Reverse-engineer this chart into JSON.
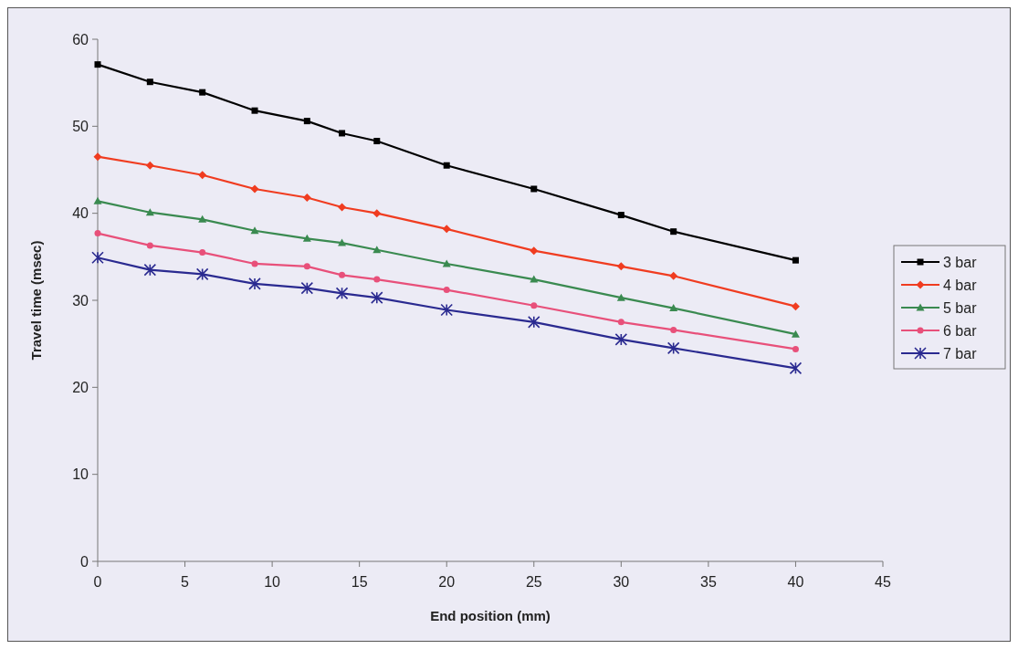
{
  "chart_data": {
    "type": "line",
    "xlabel": "End position (mm)",
    "ylabel": "Travel time (msec)",
    "x": [
      0,
      3,
      6,
      9,
      12,
      14,
      16,
      20,
      25,
      30,
      33,
      40
    ],
    "xlim": [
      0,
      45
    ],
    "xticks": [
      0,
      5,
      10,
      15,
      20,
      25,
      30,
      35,
      40,
      45
    ],
    "ylim": [
      0,
      60
    ],
    "yticks": [
      0,
      10,
      20,
      30,
      40,
      50,
      60
    ],
    "grid": false,
    "legend": "right",
    "line_style": "solid",
    "series": [
      {
        "name": "3 bar",
        "color": "#000000",
        "marker": "square",
        "values": [
          57.1,
          55.1,
          53.9,
          51.8,
          50.6,
          49.2,
          48.3,
          45.5,
          42.8,
          39.8,
          37.9,
          34.6
        ]
      },
      {
        "name": "4 bar",
        "color": "#f03c20",
        "marker": "diamond",
        "values": [
          46.5,
          45.5,
          44.4,
          42.8,
          41.8,
          40.7,
          40.0,
          38.2,
          35.7,
          33.9,
          32.8,
          29.3
        ]
      },
      {
        "name": "5 bar",
        "color": "#3a8a50",
        "marker": "triangle",
        "values": [
          41.4,
          40.1,
          39.3,
          38.0,
          37.1,
          36.6,
          35.8,
          34.2,
          32.4,
          30.3,
          29.1,
          26.1
        ]
      },
      {
        "name": "6 bar",
        "color": "#e8507a",
        "marker": "circle",
        "values": [
          37.7,
          36.3,
          35.5,
          34.2,
          33.9,
          32.9,
          32.4,
          31.2,
          29.4,
          27.5,
          26.6,
          24.4
        ]
      },
      {
        "name": "7 bar",
        "color": "#2a2a90",
        "marker": "cross",
        "values": [
          34.9,
          33.5,
          33.0,
          31.9,
          31.4,
          30.8,
          30.3,
          28.9,
          27.5,
          25.5,
          24.5,
          22.2
        ]
      }
    ]
  }
}
